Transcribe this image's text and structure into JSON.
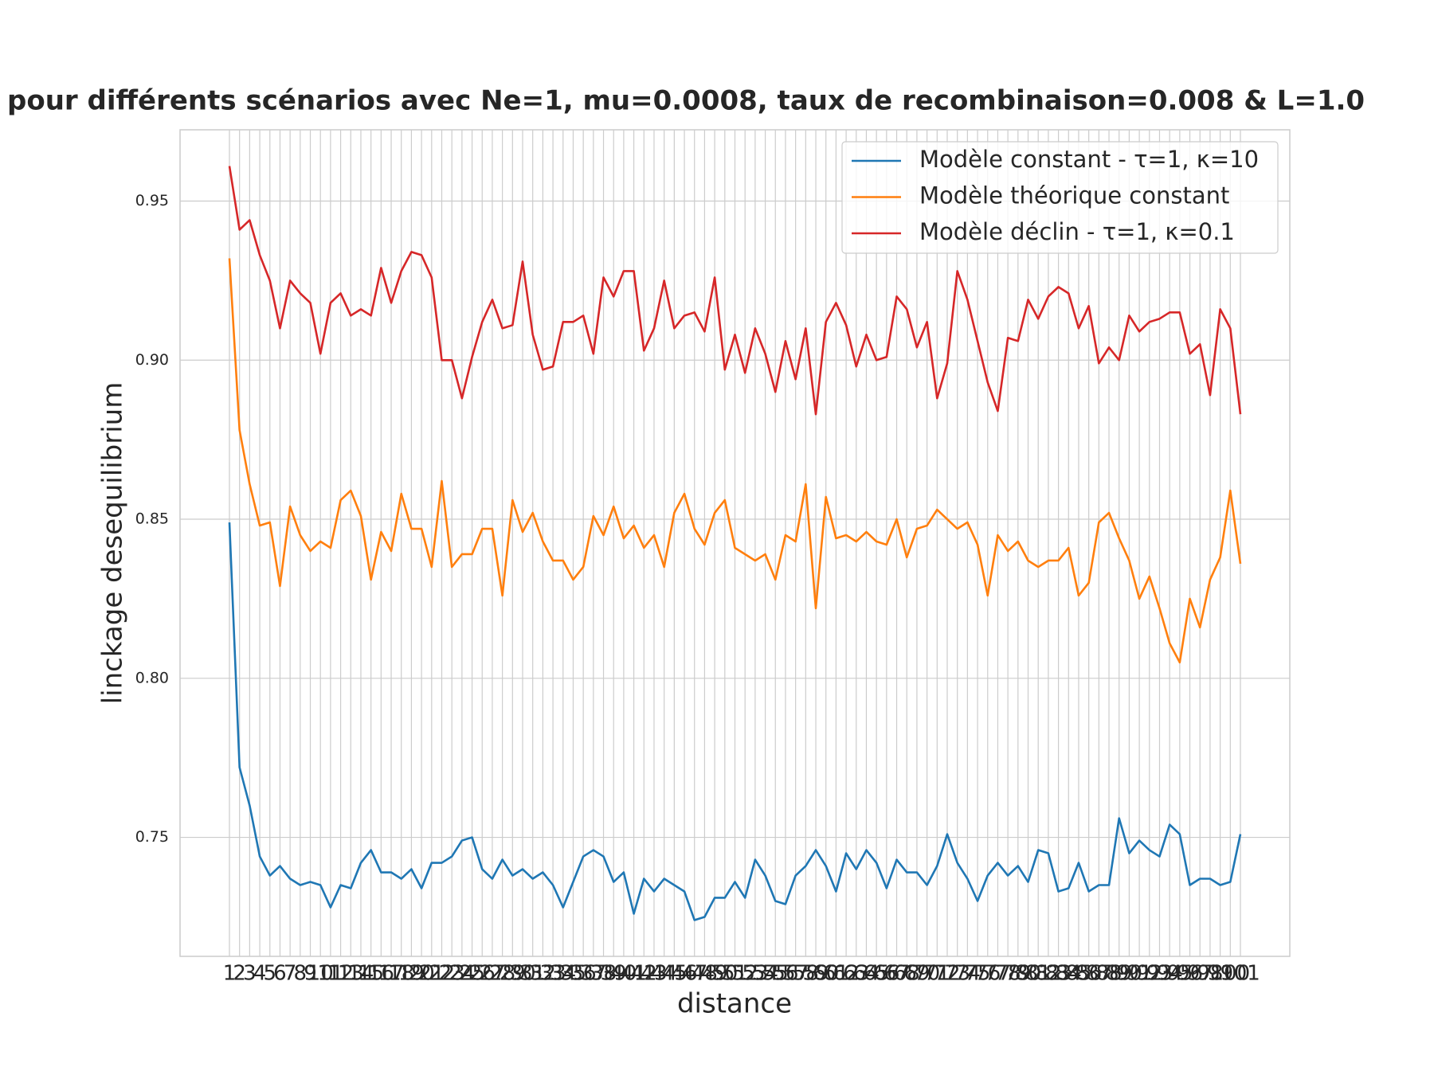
{
  "chart_data": {
    "type": "line",
    "title": "pour différents scénarios avec Ne=1, mu=0.0008, taux de recombinaison=0.008 & L=1.0",
    "x_label": "distance",
    "y_label": "linckage desequilibrium",
    "categories": [
      1,
      2,
      3,
      4,
      5,
      6,
      7,
      8,
      9,
      10,
      11,
      12,
      13,
      14,
      15,
      16,
      17,
      18,
      19,
      20,
      21,
      22,
      23,
      24,
      25,
      26,
      27,
      28,
      29,
      30,
      31,
      32,
      33,
      34,
      35,
      36,
      37,
      38,
      39,
      40,
      41,
      42,
      43,
      44,
      45,
      46,
      47,
      48,
      49,
      50,
      51,
      52,
      53,
      54,
      55,
      56,
      57,
      58,
      59,
      60,
      61,
      62,
      63,
      64,
      65,
      66,
      67,
      68,
      69,
      70,
      71,
      72,
      73,
      74,
      75,
      76,
      77,
      78,
      79,
      80,
      81,
      82,
      83,
      84,
      85,
      86,
      87,
      88,
      89,
      90,
      91,
      92,
      93,
      94,
      95,
      96,
      97,
      98,
      99,
      100,
      101
    ],
    "series": [
      {
        "name": "Modèle constant - τ=1, κ=10",
        "color": "#1f77b4",
        "values": [
          0.849,
          0.772,
          0.76,
          0.744,
          0.738,
          0.741,
          0.737,
          0.735,
          0.736,
          0.735,
          0.728,
          0.735,
          0.734,
          0.742,
          0.746,
          0.739,
          0.739,
          0.737,
          0.74,
          0.734,
          0.742,
          0.742,
          0.744,
          0.749,
          0.75,
          0.74,
          0.737,
          0.743,
          0.738,
          0.74,
          0.737,
          0.739,
          0.735,
          0.728,
          0.736,
          0.744,
          0.746,
          0.744,
          0.736,
          0.739,
          0.726,
          0.737,
          0.733,
          0.737,
          0.735,
          0.733,
          0.724,
          0.725,
          0.731,
          0.731,
          0.736,
          0.731,
          0.743,
          0.738,
          0.73,
          0.729,
          0.738,
          0.741,
          0.746,
          0.741,
          0.733,
          0.745,
          0.74,
          0.746,
          0.742,
          0.734,
          0.743,
          0.739,
          0.739,
          0.735,
          0.741,
          0.751,
          0.742,
          0.737,
          0.73,
          0.738,
          0.742,
          0.738,
          0.741,
          0.736,
          0.746,
          0.745,
          0.733,
          0.734,
          0.742,
          0.733,
          0.735,
          0.735,
          0.756,
          0.745,
          0.749,
          0.746,
          0.744,
          0.754,
          0.751,
          0.735,
          0.737,
          0.737,
          0.735,
          0.736,
          0.751
        ]
      },
      {
        "name": "Modèle théorique constant",
        "color": "#ff7f0e",
        "values": [
          0.932,
          0.878,
          0.861,
          0.848,
          0.849,
          0.829,
          0.854,
          0.845,
          0.84,
          0.843,
          0.841,
          0.856,
          0.859,
          0.851,
          0.831,
          0.846,
          0.84,
          0.858,
          0.847,
          0.847,
          0.835,
          0.862,
          0.835,
          0.839,
          0.839,
          0.847,
          0.847,
          0.826,
          0.856,
          0.846,
          0.852,
          0.843,
          0.837,
          0.837,
          0.831,
          0.835,
          0.851,
          0.845,
          0.854,
          0.844,
          0.848,
          0.841,
          0.845,
          0.835,
          0.852,
          0.858,
          0.847,
          0.842,
          0.852,
          0.856,
          0.841,
          0.839,
          0.837,
          0.839,
          0.831,
          0.845,
          0.843,
          0.861,
          0.822,
          0.857,
          0.844,
          0.845,
          0.843,
          0.846,
          0.843,
          0.842,
          0.85,
          0.838,
          0.847,
          0.848,
          0.853,
          0.85,
          0.847,
          0.849,
          0.842,
          0.826,
          0.845,
          0.84,
          0.843,
          0.837,
          0.835,
          0.837,
          0.837,
          0.841,
          0.826,
          0.83,
          0.849,
          0.852,
          0.844,
          0.837,
          0.825,
          0.832,
          0.822,
          0.811,
          0.805,
          0.825,
          0.816,
          0.831,
          0.838,
          0.859,
          0.836
        ]
      },
      {
        "name": "Modèle déclin - τ=1, κ=0.1",
        "color": "#d62728",
        "values": [
          0.961,
          0.941,
          0.944,
          0.933,
          0.925,
          0.91,
          0.925,
          0.921,
          0.918,
          0.902,
          0.918,
          0.921,
          0.914,
          0.916,
          0.914,
          0.929,
          0.918,
          0.928,
          0.934,
          0.933,
          0.926,
          0.9,
          0.9,
          0.888,
          0.901,
          0.912,
          0.919,
          0.91,
          0.911,
          0.931,
          0.908,
          0.897,
          0.898,
          0.912,
          0.912,
          0.914,
          0.902,
          0.926,
          0.92,
          0.928,
          0.928,
          0.903,
          0.91,
          0.925,
          0.91,
          0.914,
          0.915,
          0.909,
          0.926,
          0.897,
          0.908,
          0.896,
          0.91,
          0.902,
          0.89,
          0.906,
          0.894,
          0.91,
          0.883,
          0.912,
          0.918,
          0.911,
          0.898,
          0.908,
          0.9,
          0.901,
          0.92,
          0.916,
          0.904,
          0.912,
          0.888,
          0.899,
          0.928,
          0.919,
          0.906,
          0.893,
          0.884,
          0.907,
          0.906,
          0.919,
          0.913,
          0.92,
          0.923,
          0.921,
          0.91,
          0.917,
          0.899,
          0.904,
          0.9,
          0.914,
          0.909,
          0.912,
          0.913,
          0.915,
          0.915,
          0.902,
          0.905,
          0.889,
          0.916,
          0.91,
          0.883
        ]
      }
    ],
    "ylim": [
      0.7126,
      0.9724
    ],
    "yticks": [
      0.75,
      {
        "value": 0.8,
        "label": "0.80"
      },
      0.85,
      {
        "value": 0.9,
        "label": "0.90"
      },
      0.95
    ],
    "grid": true,
    "legend": "upper right"
  }
}
